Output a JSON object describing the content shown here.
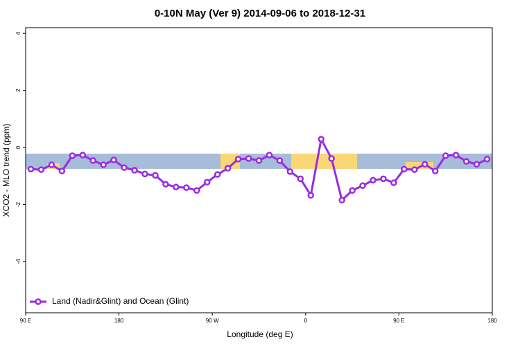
{
  "chart_data": {
    "type": "line",
    "title": "0-10N May (Ver 9)   2014-09-06 to 2018-12-31",
    "x_label": "Longitude (deg E)",
    "y_label": "XCO2 - MLO trend (ppm)",
    "xlim": [
      90,
      540
    ],
    "ylim": [
      -5.8,
      4.2
    ],
    "xticks": [
      {
        "value": 90,
        "label": "90 E"
      },
      180,
      {
        "value": 270,
        "label": "90 W"
      },
      {
        "value": 360,
        "label": "0"
      },
      {
        "value": 450,
        "label": "90 E"
      },
      {
        "value": 540,
        "label": "180"
      }
    ],
    "yticks": [
      -4,
      -2,
      0,
      2,
      4
    ],
    "legend": "bottom-left",
    "x": [
      95,
      105,
      115,
      125,
      135,
      145,
      155,
      165,
      175,
      185,
      195,
      205,
      215,
      225,
      235,
      245,
      255,
      265,
      275,
      285,
      295,
      305,
      315,
      325,
      335,
      345,
      355,
      365,
      375,
      385,
      395,
      405,
      415,
      425,
      435,
      445,
      455,
      465,
      475,
      485,
      495,
      505,
      515,
      525,
      535
    ],
    "series": [
      {
        "name": "Land (Nadir&Glint) and Ocean (Glint)",
        "color": "#9a2be2",
        "values": [
          -0.76,
          -0.78,
          -0.61,
          -0.83,
          -0.29,
          -0.27,
          -0.46,
          -0.61,
          -0.44,
          -0.71,
          -0.8,
          -0.93,
          -0.98,
          -1.29,
          -1.39,
          -1.41,
          -1.51,
          -1.22,
          -0.95,
          -0.73,
          -0.41,
          -0.39,
          -0.46,
          -0.27,
          -0.46,
          -0.85,
          -1.1,
          -1.68,
          0.29,
          -0.39,
          -1.85,
          -1.51,
          -1.34,
          -1.15,
          -1.1,
          -1.24,
          -0.76,
          -0.78,
          -0.59,
          -0.83,
          -0.29,
          -0.27,
          -0.49,
          -0.59,
          -0.41
        ]
      }
    ]
  }
}
